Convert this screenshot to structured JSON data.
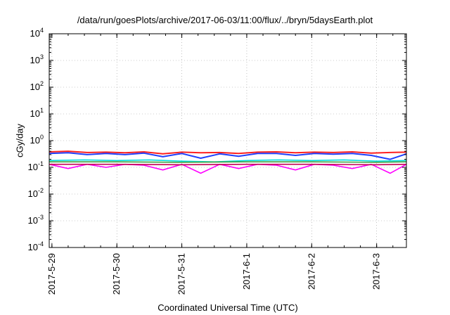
{
  "chart_data": {
    "type": "line",
    "title": "/data/run/goesPlots/archive/2017-06-03/11:00/flux/../bryn/5daysEarth.plot",
    "xlabel": "Coordinated Universal Time (UTC)",
    "ylabel": "cGy/day",
    "yscale": "log",
    "ylim": [
      0.0001,
      10000
    ],
    "y_ticks": [
      {
        "base": "10",
        "exp": "-4"
      },
      {
        "base": "10",
        "exp": "-3"
      },
      {
        "base": "10",
        "exp": "-2"
      },
      {
        "base": "10",
        "exp": "-1"
      },
      {
        "base": "10",
        "exp": "0"
      },
      {
        "base": "10",
        "exp": "1"
      },
      {
        "base": "10",
        "exp": "2"
      },
      {
        "base": "10",
        "exp": "3"
      },
      {
        "base": "10",
        "exp": "4"
      }
    ],
    "xlim": [
      "2017-05-28T23:00",
      "2017-06-03T11:00"
    ],
    "x_ticks": [
      {
        "label": "2017-5-29",
        "date": "2017-05-29"
      },
      {
        "label": "2017-5-30",
        "date": "2017-05-30"
      },
      {
        "label": "2017-5-31",
        "date": "2017-05-31"
      },
      {
        "label": "2017-6-1",
        "date": "2017-06-01"
      },
      {
        "label": "2017-6-2",
        "date": "2017-06-02"
      },
      {
        "label": "2017-6-3",
        "date": "2017-06-03"
      }
    ],
    "grid": true,
    "legend": "none",
    "series": [
      {
        "color": "#ff00ff",
        "x": [
          "2017-05-28T23:00",
          "2017-05-29T06:00",
          "2017-05-29T13:00",
          "2017-05-29T20:00",
          "2017-05-30T03:00",
          "2017-05-30T10:00",
          "2017-05-30T17:00",
          "2017-05-31T00:00",
          "2017-05-31T07:00",
          "2017-05-31T14:00",
          "2017-05-31T21:00",
          "2017-06-01T04:00",
          "2017-06-01T11:00",
          "2017-06-01T18:00",
          "2017-06-02T01:00",
          "2017-06-02T08:00",
          "2017-06-02T15:00",
          "2017-06-02T22:00",
          "2017-06-03T05:00",
          "2017-06-03T11:00"
        ],
        "y": [
          0.13,
          0.09,
          0.13,
          0.1,
          0.13,
          0.12,
          0.08,
          0.13,
          0.06,
          0.13,
          0.09,
          0.13,
          0.12,
          0.08,
          0.13,
          0.12,
          0.09,
          0.13,
          0.06,
          0.13
        ]
      },
      {
        "color": "#c00050",
        "x": [
          "2017-05-28T23:00",
          "2017-05-30T00:00",
          "2017-05-31T00:00",
          "2017-06-01T00:00",
          "2017-06-02T00:00",
          "2017-06-03T00:00",
          "2017-06-03T11:00"
        ],
        "y": [
          0.13,
          0.13,
          0.125,
          0.13,
          0.13,
          0.125,
          0.13
        ]
      },
      {
        "color": "#00e0e0",
        "x": [
          "2017-05-28T23:00",
          "2017-05-29T12:00",
          "2017-05-30T00:00",
          "2017-05-30T12:00",
          "2017-05-31T00:00",
          "2017-05-31T12:00",
          "2017-06-01T00:00",
          "2017-06-01T12:00",
          "2017-06-02T00:00",
          "2017-06-02T12:00",
          "2017-06-03T00:00",
          "2017-06-03T11:00"
        ],
        "y": [
          0.18,
          0.19,
          0.18,
          0.19,
          0.17,
          0.16,
          0.18,
          0.19,
          0.18,
          0.19,
          0.17,
          0.18
        ]
      },
      {
        "color": "#40a040",
        "x": [
          "2017-05-28T23:00",
          "2017-05-30T00:00",
          "2017-05-31T00:00",
          "2017-06-01T00:00",
          "2017-06-02T00:00",
          "2017-06-03T00:00",
          "2017-06-03T11:00"
        ],
        "y": [
          0.16,
          0.16,
          0.155,
          0.16,
          0.16,
          0.155,
          0.16
        ]
      },
      {
        "color": "#ff2020",
        "x": [
          "2017-05-28T23:00",
          "2017-05-29T06:00",
          "2017-05-29T13:00",
          "2017-05-29T20:00",
          "2017-05-30T03:00",
          "2017-05-30T10:00",
          "2017-05-30T17:00",
          "2017-05-31T00:00",
          "2017-05-31T07:00",
          "2017-05-31T14:00",
          "2017-05-31T21:00",
          "2017-06-01T04:00",
          "2017-06-01T11:00",
          "2017-06-01T18:00",
          "2017-06-02T01:00",
          "2017-06-02T08:00",
          "2017-06-02T15:00",
          "2017-06-02T22:00",
          "2017-06-03T05:00",
          "2017-06-03T11:00"
        ],
        "y": [
          0.38,
          0.4,
          0.36,
          0.37,
          0.35,
          0.38,
          0.32,
          0.37,
          0.35,
          0.36,
          0.33,
          0.37,
          0.38,
          0.35,
          0.37,
          0.36,
          0.38,
          0.34,
          0.36,
          0.37
        ]
      },
      {
        "color": "#2040ff",
        "x": [
          "2017-05-28T23:00",
          "2017-05-29T06:00",
          "2017-05-29T13:00",
          "2017-05-29T20:00",
          "2017-05-30T03:00",
          "2017-05-30T10:00",
          "2017-05-30T17:00",
          "2017-05-31T00:00",
          "2017-05-31T07:00",
          "2017-05-31T14:00",
          "2017-05-31T21:00",
          "2017-06-01T04:00",
          "2017-06-01T11:00",
          "2017-06-01T18:00",
          "2017-06-02T01:00",
          "2017-06-02T08:00",
          "2017-06-02T15:00",
          "2017-06-02T22:00",
          "2017-06-03T05:00",
          "2017-06-03T11:00"
        ],
        "y": [
          0.33,
          0.35,
          0.3,
          0.33,
          0.3,
          0.34,
          0.25,
          0.33,
          0.22,
          0.32,
          0.26,
          0.33,
          0.33,
          0.28,
          0.33,
          0.31,
          0.33,
          0.28,
          0.2,
          0.32
        ]
      }
    ]
  }
}
